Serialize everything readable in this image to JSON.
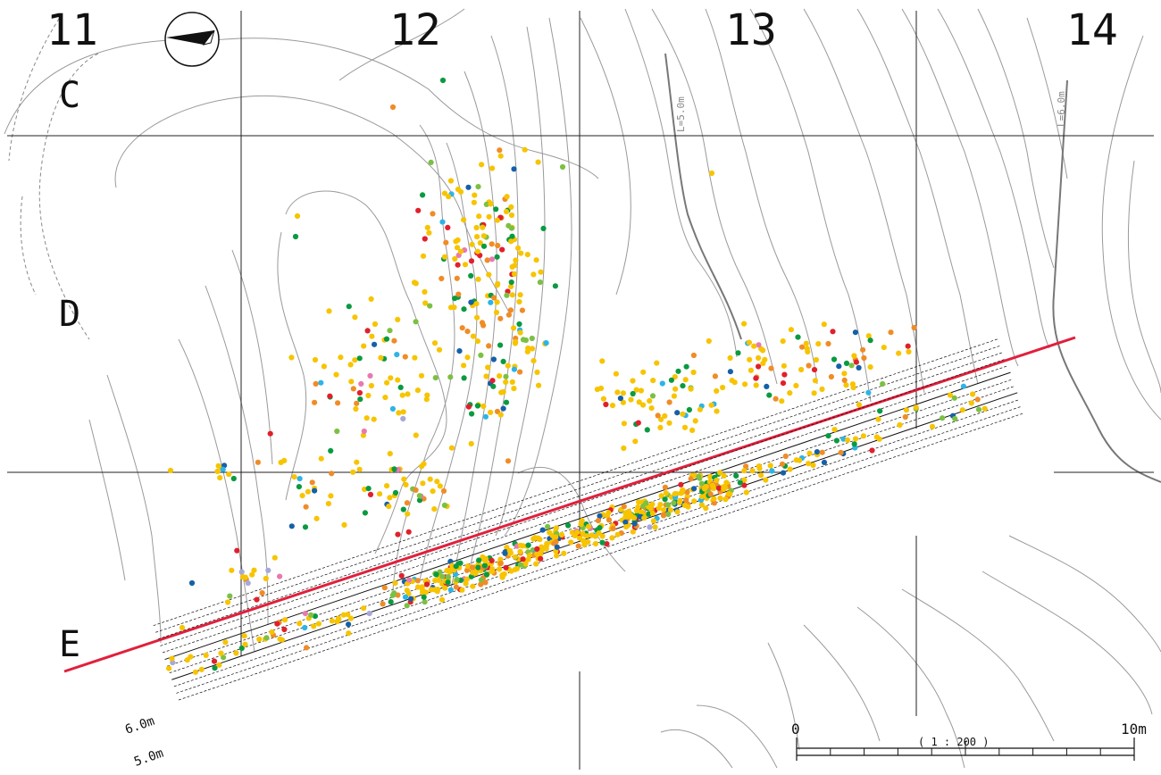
{
  "grid": {
    "columns": [
      "11",
      "12",
      "13",
      "14"
    ],
    "rows": [
      "C",
      "D",
      "E"
    ]
  },
  "contours": {
    "label_5": "L=5.0m",
    "label_6": "L=6.0m"
  },
  "section": {
    "label_6": "6.0m",
    "label_5": "5.0m"
  },
  "scale": {
    "zero": "0",
    "max": "10m",
    "ratio": "( 1 : 200 )"
  },
  "colors": {
    "yellow": "#f7c400",
    "orange": "#f08c28",
    "red": "#e0202c",
    "green": "#0a9a40",
    "lightgreen": "#7cc043",
    "blue": "#1560a8",
    "cyan": "#2cb4e8",
    "pink": "#e87ab0",
    "lavender": "#a8a8d8",
    "section_line": "#e0203c"
  },
  "icons": {
    "north_arrow": "north-arrow-icon"
  }
}
